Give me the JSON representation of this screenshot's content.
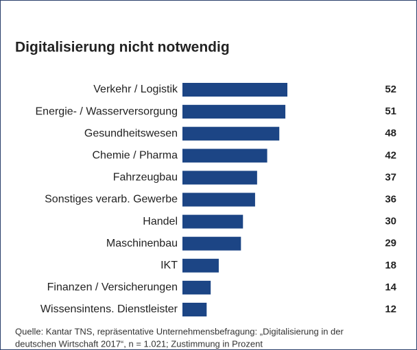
{
  "chart_data": {
    "type": "barh",
    "title": "Digitalisierung nicht notwendig",
    "categories": [
      "Verkehr / Logistik",
      "Energie- / Wasserversorgung",
      "Gesundheitswesen",
      "Chemie / Pharma",
      "Fahrzeugbau",
      "Sonstiges verarb. Gewerbe",
      "Handel",
      "Maschinenbau",
      "IKT",
      "Finanzen / Versicherungen",
      "Wissensintens. Dienstleister"
    ],
    "values": [
      52,
      51,
      48,
      42,
      37,
      36,
      30,
      29,
      18,
      14,
      12
    ],
    "color": "#1c4585",
    "source": [
      "Quelle: Kantar TNS, repräsentative  Unternehmensbefragung: „Digitalisierung in der",
      "deutschen Wirtschaft 2017“, n = 1.021; Zustimmung in Prozent"
    ]
  }
}
